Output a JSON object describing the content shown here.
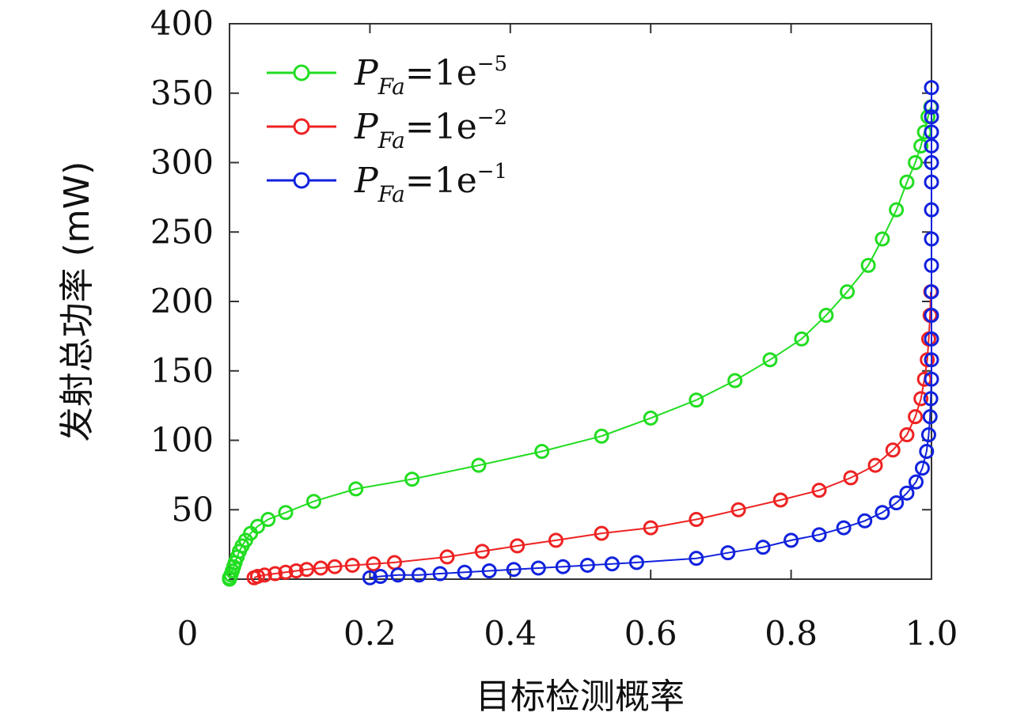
{
  "chart_data": {
    "type": "line",
    "title": "",
    "xlabel": "目标检测概率",
    "ylabel": "发射总功率 (mW)",
    "xlim": [
      0,
      1.0
    ],
    "ylim": [
      0,
      400
    ],
    "x_ticks": [
      "0",
      "0.2",
      "0.4",
      "0.6",
      "0.8",
      "1.0"
    ],
    "y_ticks": [
      "50",
      "100",
      "150",
      "200",
      "250",
      "300",
      "350",
      "400"
    ],
    "legend_position": "top-left",
    "series": [
      {
        "legend": {
          "p": "P",
          "sub": "Fa",
          "eq": "=1e",
          "sup": "−5"
        },
        "color": "#22dd22",
        "points": [
          [
            0.0,
            0
          ],
          [
            0.0,
            1
          ],
          [
            0.002,
            3
          ],
          [
            0.004,
            6
          ],
          [
            0.006,
            9
          ],
          [
            0.008,
            12
          ],
          [
            0.011,
            16
          ],
          [
            0.014,
            20
          ],
          [
            0.018,
            24
          ],
          [
            0.023,
            28
          ],
          [
            0.03,
            33
          ],
          [
            0.04,
            38
          ],
          [
            0.055,
            43
          ],
          [
            0.08,
            48
          ],
          [
            0.12,
            56
          ],
          [
            0.18,
            65
          ],
          [
            0.26,
            72
          ],
          [
            0.355,
            82
          ],
          [
            0.445,
            92
          ],
          [
            0.53,
            103
          ],
          [
            0.6,
            116
          ],
          [
            0.665,
            129
          ],
          [
            0.72,
            143
          ],
          [
            0.77,
            158
          ],
          [
            0.815,
            173
          ],
          [
            0.85,
            190
          ],
          [
            0.88,
            207
          ],
          [
            0.91,
            226
          ],
          [
            0.93,
            245
          ],
          [
            0.95,
            266
          ],
          [
            0.965,
            286
          ],
          [
            0.977,
            300
          ],
          [
            0.985,
            312
          ],
          [
            0.99,
            322
          ],
          [
            0.995,
            333
          ],
          [
            0.999,
            340
          ]
        ]
      },
      {
        "legend": {
          "p": "P",
          "sub": "Fa",
          "eq": "=1e",
          "sup": "−2"
        },
        "color": "#ee2222",
        "points": [
          [
            0.035,
            1
          ],
          [
            0.04,
            2
          ],
          [
            0.05,
            3
          ],
          [
            0.065,
            4
          ],
          [
            0.08,
            5
          ],
          [
            0.095,
            6
          ],
          [
            0.11,
            7
          ],
          [
            0.13,
            8
          ],
          [
            0.15,
            9
          ],
          [
            0.175,
            10
          ],
          [
            0.205,
            11
          ],
          [
            0.235,
            12
          ],
          [
            0.31,
            16
          ],
          [
            0.36,
            20
          ],
          [
            0.41,
            24
          ],
          [
            0.465,
            28
          ],
          [
            0.53,
            33
          ],
          [
            0.6,
            37
          ],
          [
            0.665,
            43
          ],
          [
            0.725,
            50
          ],
          [
            0.785,
            57
          ],
          [
            0.84,
            64
          ],
          [
            0.885,
            73
          ],
          [
            0.92,
            82
          ],
          [
            0.945,
            93
          ],
          [
            0.965,
            104
          ],
          [
            0.977,
            117
          ],
          [
            0.985,
            130
          ],
          [
            0.99,
            144
          ],
          [
            0.994,
            158
          ],
          [
            0.996,
            173
          ],
          [
            0.998,
            190
          ],
          [
            0.999,
            207
          ]
        ]
      },
      {
        "legend": {
          "p": "P",
          "sub": "Fa",
          "eq": "=1e",
          "sup": "−1"
        },
        "color": "#1122dd",
        "points": [
          [
            0.2,
            1
          ],
          [
            0.215,
            2
          ],
          [
            0.24,
            3
          ],
          [
            0.27,
            3
          ],
          [
            0.3,
            4
          ],
          [
            0.335,
            5
          ],
          [
            0.37,
            6
          ],
          [
            0.405,
            7
          ],
          [
            0.44,
            8
          ],
          [
            0.475,
            9
          ],
          [
            0.51,
            10
          ],
          [
            0.545,
            11
          ],
          [
            0.58,
            12
          ],
          [
            0.665,
            15
          ],
          [
            0.71,
            19
          ],
          [
            0.76,
            23
          ],
          [
            0.8,
            28
          ],
          [
            0.84,
            32
          ],
          [
            0.875,
            37
          ],
          [
            0.905,
            42
          ],
          [
            0.93,
            48
          ],
          [
            0.95,
            55
          ],
          [
            0.965,
            62
          ],
          [
            0.978,
            70
          ],
          [
            0.987,
            80
          ],
          [
            0.993,
            92
          ],
          [
            0.996,
            104
          ],
          [
            0.998,
            117
          ],
          [
            0.999,
            130
          ],
          [
            1.0,
            144
          ],
          [
            1.0,
            158
          ],
          [
            1.0,
            173
          ],
          [
            1.0,
            190
          ],
          [
            1.0,
            207
          ],
          [
            1.0,
            226
          ],
          [
            1.0,
            245
          ],
          [
            1.0,
            266
          ],
          [
            1.0,
            286
          ],
          [
            1.0,
            300
          ],
          [
            1.0,
            312
          ],
          [
            1.0,
            322
          ],
          [
            1.0,
            333
          ],
          [
            1.0,
            340
          ],
          [
            1.0,
            354
          ]
        ]
      }
    ]
  }
}
